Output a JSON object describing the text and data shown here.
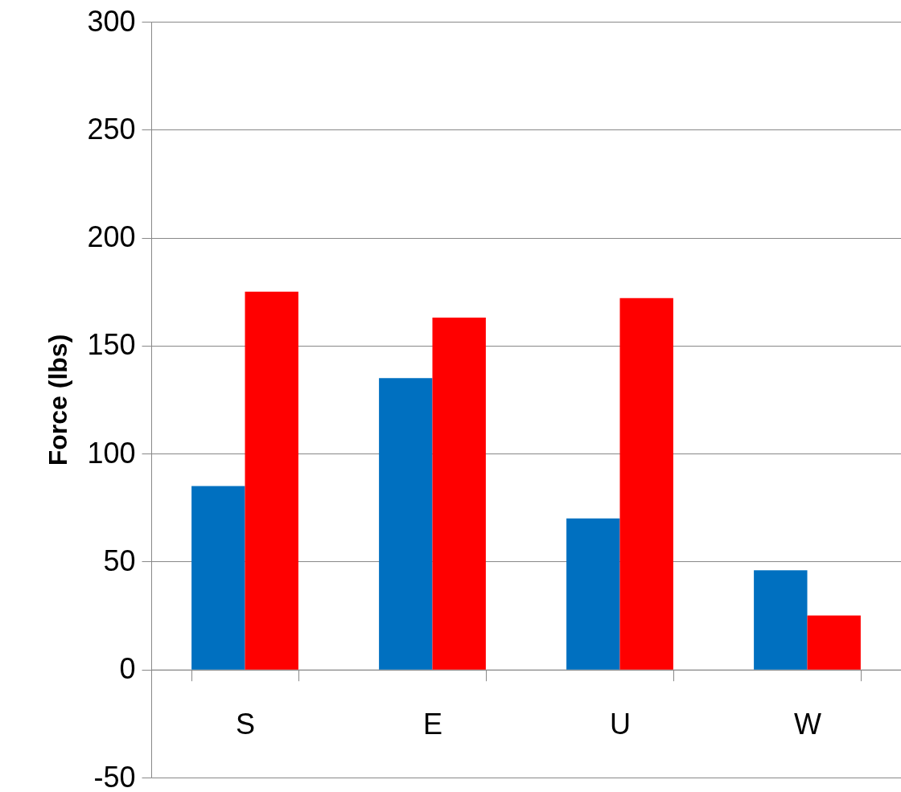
{
  "chart_data": {
    "type": "bar",
    "ylabel": "Force (lbs)",
    "categories": [
      "S",
      "E",
      "U",
      "W"
    ],
    "series": [
      {
        "color": "#0070c0",
        "values": [
          85,
          135,
          70,
          46
        ]
      },
      {
        "color": "#ff0000",
        "values": [
          175,
          163,
          172,
          25
        ]
      }
    ],
    "ylim": [
      -50,
      300
    ],
    "yticks": [
      -50,
      0,
      50,
      100,
      150,
      200,
      250,
      300
    ],
    "grid": "y",
    "legend": false
  }
}
